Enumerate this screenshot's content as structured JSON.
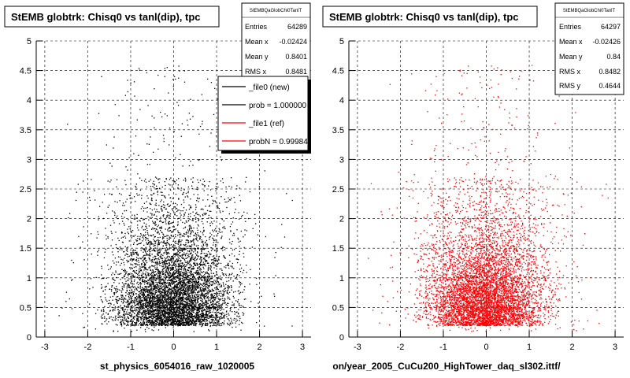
{
  "footer_text": "",
  "chart_data": [
    {
      "type": "scatter",
      "title": "StEMB globtrk: Chisq0 vs tanl(dip), tpc",
      "xlabel": "st_physics_6054016_raw_1020005",
      "ylabel": "",
      "xlim": [
        -3.2,
        3.2
      ],
      "ylim": [
        0,
        5
      ],
      "xticks": [
        "-3",
        "-2",
        "-1",
        "0",
        "1",
        "2",
        "3"
      ],
      "yticks": [
        "0",
        "0.5",
        "1",
        "1.5",
        "2",
        "2.5",
        "3",
        "3.5",
        "4",
        "4.5",
        "5"
      ],
      "grid": true,
      "marker_color": "#000000",
      "stats": {
        "header": "StEMBQaGlobChi0TanlT",
        "rows": [
          {
            "label": "Entries",
            "value": "64289"
          },
          {
            "label": "Mean x",
            "value": "-0.02424"
          },
          {
            "label": "Mean y",
            "value": "0.8401"
          },
          {
            "label": "RMS x",
            "value": "0.8481"
          }
        ]
      },
      "legend": {
        "placement": "top-right",
        "entries": [
          {
            "label": "_file0 (new)",
            "color": "#000000"
          },
          {
            "label": "prob = 1.000000",
            "color": "#000000"
          },
          {
            "label": "_file1 (ref)",
            "color": "#ff0000"
          },
          {
            "label": "probN = 0.99984",
            "color": "#ff0000"
          }
        ]
      },
      "distribution": {
        "mean_x": -0.02424,
        "mean_y": 0.8401,
        "rms_x": 0.8481,
        "entries": 64289
      }
    },
    {
      "type": "scatter",
      "title": "StEMB globtrk: Chisq0 vs tanl(dip), tpc",
      "xlabel": "on/year_2005_CuCu200_HighTower_daq_sl302.ittf/",
      "ylabel": "",
      "xlim": [
        -3.2,
        3.2
      ],
      "ylim": [
        0,
        5
      ],
      "xticks": [
        "-3",
        "-2",
        "-1",
        "0",
        "1",
        "2",
        "3"
      ],
      "yticks": [
        "0",
        "0.5",
        "1",
        "1.5",
        "2",
        "2.5",
        "3",
        "3.5",
        "4",
        "4.5",
        "5"
      ],
      "grid": true,
      "marker_color": "#ff0000",
      "stats": {
        "header": "StEMBQaGlobChi0TanlT",
        "rows": [
          {
            "label": "Entries",
            "value": "64297"
          },
          {
            "label": "Mean x",
            "value": "-0.02426"
          },
          {
            "label": "Mean y",
            "value": "0.84"
          },
          {
            "label": "RMS x",
            "value": "0.8482"
          },
          {
            "label": "RMS y",
            "value": "0.4644"
          }
        ]
      },
      "distribution": {
        "mean_x": -0.02426,
        "mean_y": 0.84,
        "rms_x": 0.8482,
        "rms_y": 0.4644,
        "entries": 64297
      }
    }
  ]
}
